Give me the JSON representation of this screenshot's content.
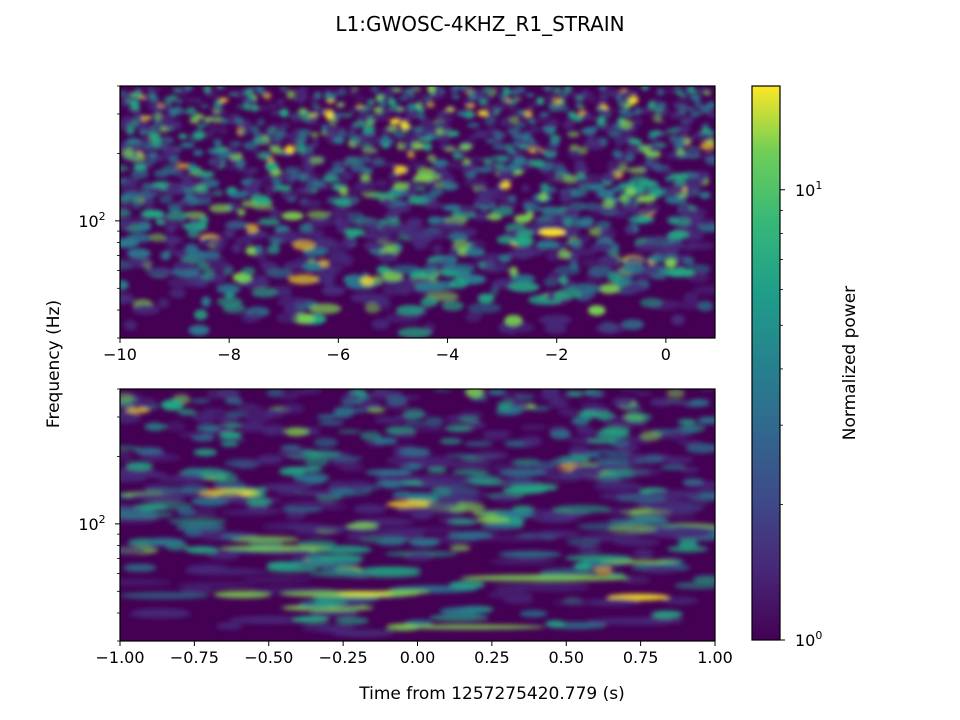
{
  "chart_data": {
    "title": "L1:GWOSC-4KHZ_R1_STRAIN",
    "type": "heatmap",
    "ylabel": "Frequency (Hz)",
    "colormap": "viridis",
    "colorbar": {
      "label": "Normalized power",
      "scale": "log",
      "range": [
        1,
        17
      ],
      "ticks": [
        {
          "value": 1,
          "base": "10",
          "exp": "0"
        },
        {
          "value": 10,
          "base": "10",
          "exp": "1"
        }
      ]
    },
    "panels": [
      {
        "name": "top",
        "xlim": [
          -10,
          0.9
        ],
        "ylim": [
          30,
          400
        ],
        "yscale": "log",
        "xticks": [
          "−10",
          "−8",
          "−6",
          "−4",
          "−2",
          "0"
        ],
        "xtick_values": [
          -10,
          -8,
          -6,
          -4,
          -2,
          0
        ],
        "yticks": [
          {
            "value": 100,
            "base": "10",
            "exp": "2"
          }
        ]
      },
      {
        "name": "bottom",
        "xlabel": "Time from 1257275420.779 (s)",
        "xlim": [
          -1,
          1
        ],
        "ylim": [
          30,
          400
        ],
        "yscale": "log",
        "xticks": [
          "−1.00",
          "−0.75",
          "−0.50",
          "−0.25",
          "0.00",
          "0.25",
          "0.50",
          "0.75",
          "1.00"
        ],
        "xtick_values": [
          -1,
          -0.75,
          -0.5,
          -0.25,
          0,
          0.25,
          0.5,
          0.75,
          1
        ],
        "yticks": [
          {
            "value": 100,
            "base": "10",
            "exp": "2"
          }
        ]
      }
    ],
    "colors": {
      "background": "#440154",
      "low": "#472a7a",
      "mid": "#2a788e",
      "teal": "#22a884",
      "high": "#7ad151",
      "peak": "#fde725"
    }
  }
}
